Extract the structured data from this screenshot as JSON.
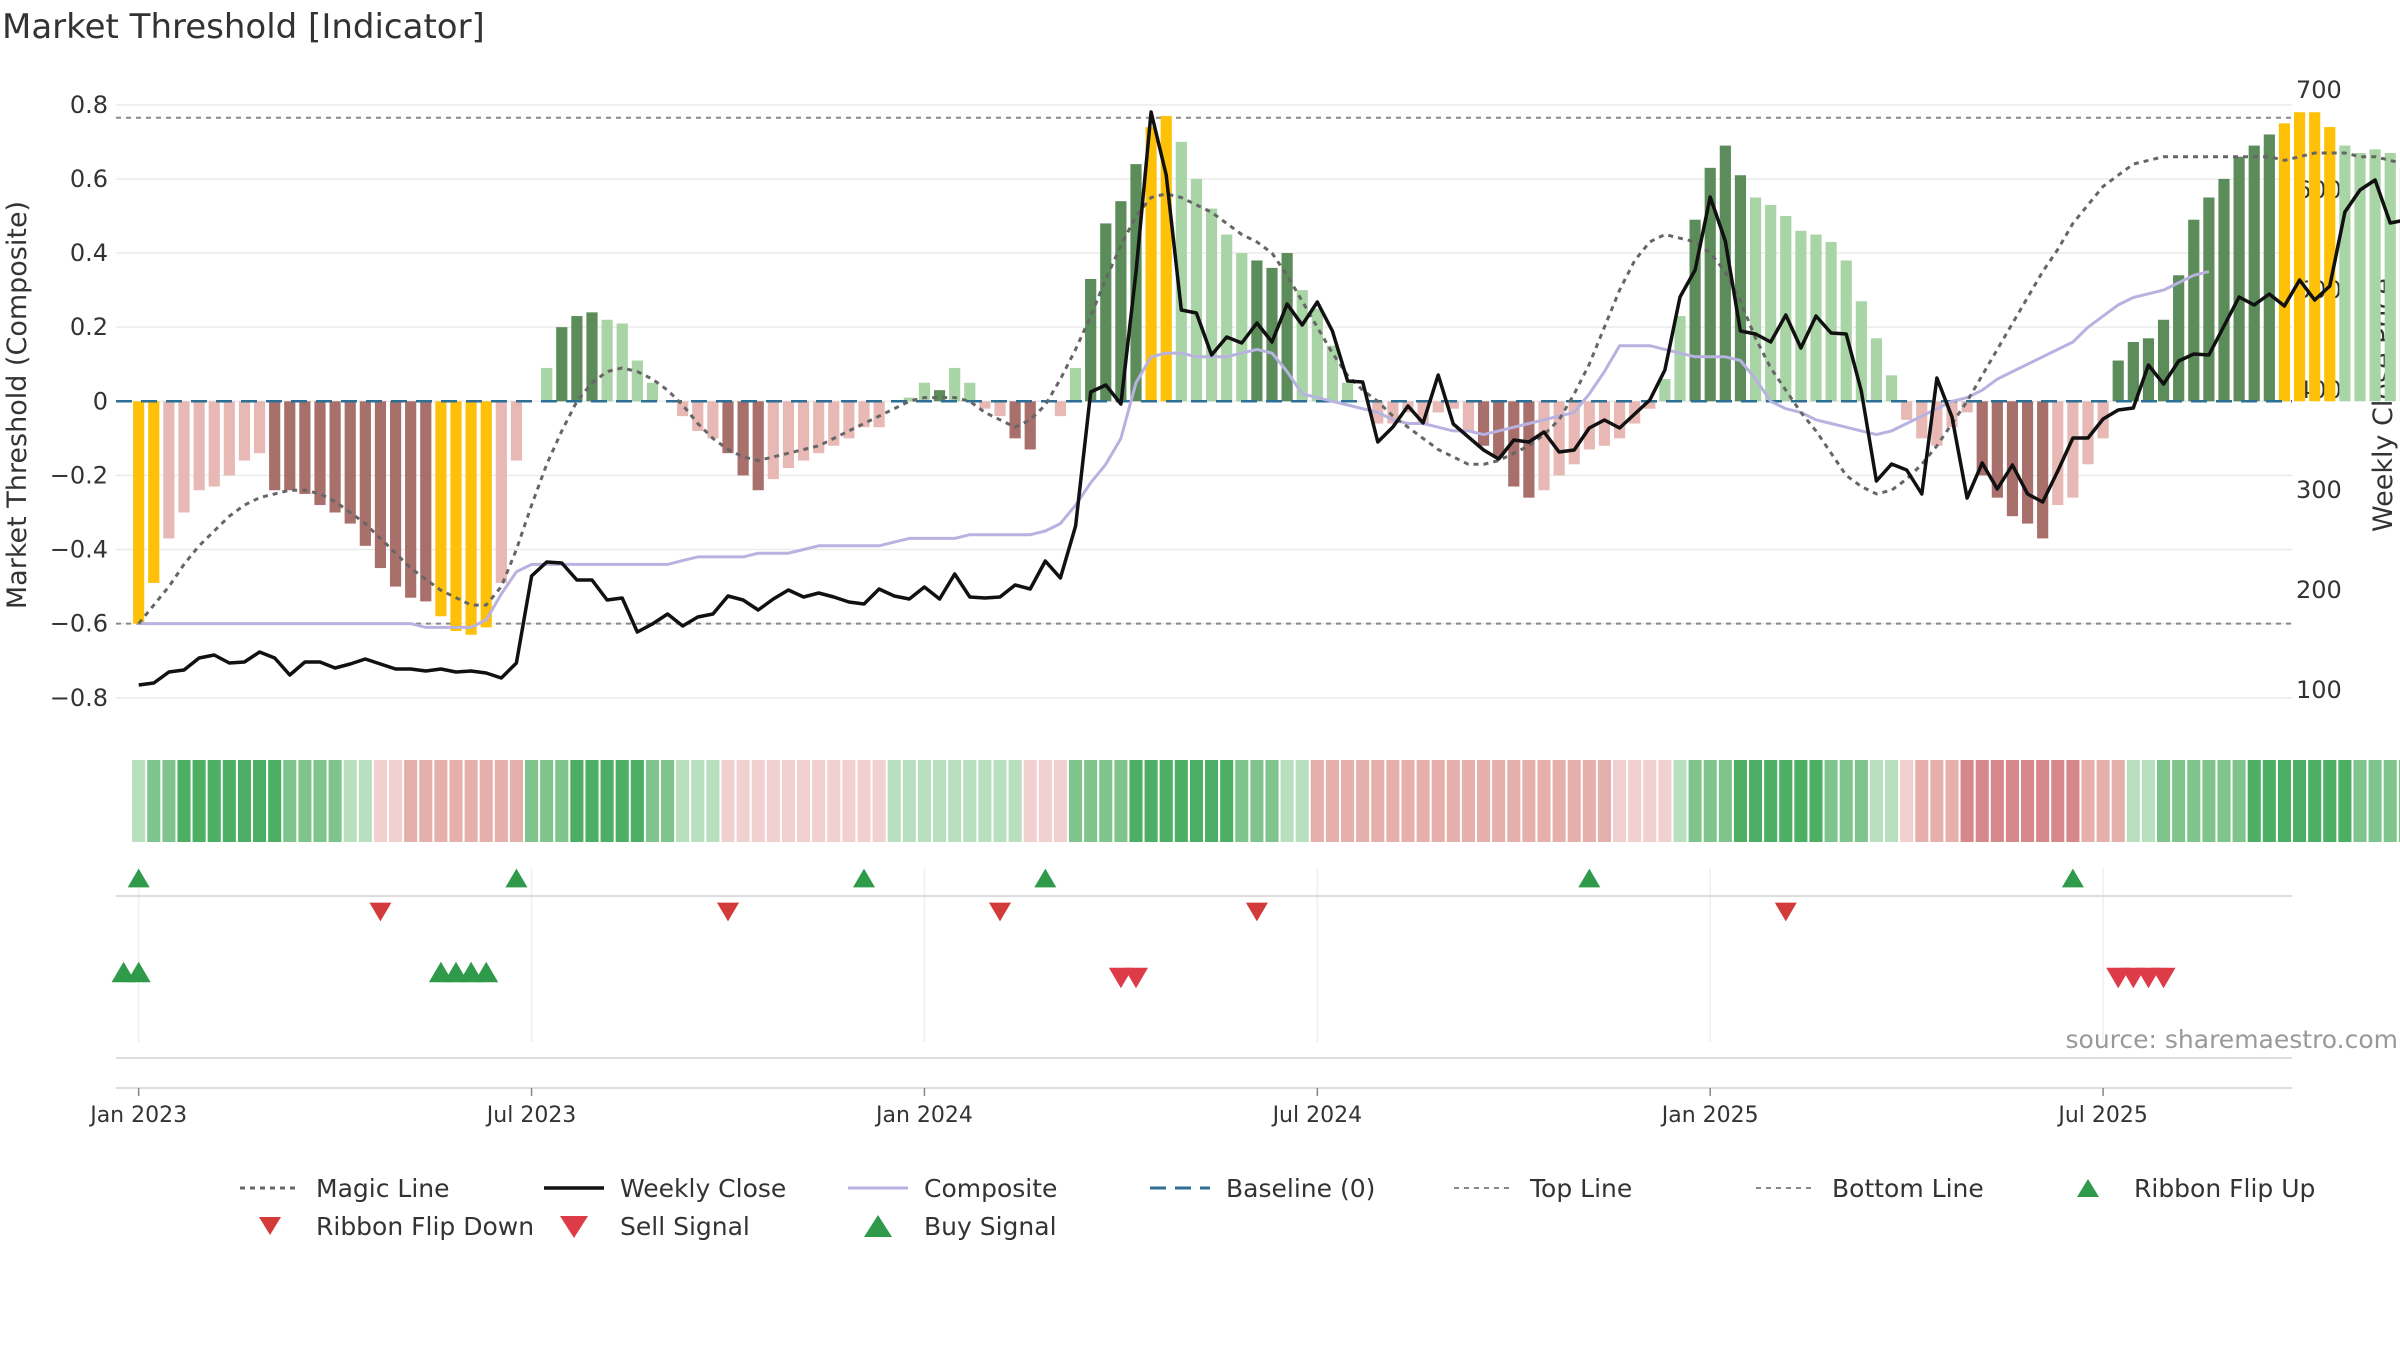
{
  "chart_data": [
    {
      "type": "bar",
      "title": "Market Threshold [Indicator]",
      "ylabel": "Market Threshold (Composite)",
      "y2label": "Weekly Close Price",
      "source": "source: sharemaestro.com",
      "ylim": [
        -0.86,
        0.84
      ],
      "y2lim": [
        70,
        700
      ],
      "yticks": [
        "−0.8",
        "−0.6",
        "−0.4",
        "−0.2",
        "0",
        "0.2",
        "0.4",
        "0.6",
        "0.8"
      ],
      "yticks_values": [
        -0.8,
        -0.6,
        -0.4,
        -0.2,
        0,
        0.2,
        0.4,
        0.6,
        0.8
      ],
      "y2ticks": [
        "100",
        "200",
        "300",
        "400",
        "500",
        "600",
        "700"
      ],
      "y2ticks_values": [
        100,
        200,
        300,
        400,
        500,
        600,
        700
      ],
      "xticks": [
        "Jan 2023",
        "Jul 2023",
        "Jan 2024",
        "Jul 2024",
        "Jan 2025",
        "Jul 2025"
      ],
      "xticks_weeks": [
        0,
        26,
        52,
        78,
        104,
        130
      ],
      "week_start": "2023-01-02",
      "top_line": 0.765,
      "bottom_line": -0.6,
      "x_range_weeks": [
        -1.5,
        142.5
      ],
      "composite": [
        -0.6,
        -0.49,
        -0.37,
        -0.3,
        -0.24,
        -0.23,
        -0.2,
        -0.16,
        -0.14,
        -0.24,
        -0.24,
        -0.25,
        -0.28,
        -0.3,
        -0.33,
        -0.39,
        -0.45,
        -0.5,
        -0.53,
        -0.54,
        -0.58,
        -0.62,
        -0.63,
        -0.61,
        -0.49,
        -0.16,
        0.0,
        0.09,
        0.2,
        0.23,
        0.24,
        0.22,
        0.21,
        0.11,
        0.05,
        0.0,
        -0.04,
        -0.08,
        -0.1,
        -0.14,
        -0.2,
        -0.24,
        -0.21,
        -0.18,
        -0.16,
        -0.14,
        -0.12,
        -0.1,
        -0.07,
        -0.07,
        0.0,
        0.01,
        0.05,
        0.03,
        0.09,
        0.05,
        -0.02,
        -0.04,
        -0.1,
        -0.13,
        0.0,
        -0.04,
        0.09,
        0.33,
        0.48,
        0.54,
        0.64,
        0.74,
        0.77,
        0.7,
        0.6,
        0.52,
        0.45,
        0.4,
        0.38,
        0.36,
        0.4,
        0.3,
        0.25,
        0.15,
        0.05,
        0.0,
        -0.06,
        -0.06,
        -0.03,
        -0.06,
        -0.03,
        -0.02,
        -0.08,
        -0.12,
        -0.15,
        -0.23,
        -0.26,
        -0.24,
        -0.2,
        -0.17,
        -0.13,
        -0.12,
        -0.1,
        -0.06,
        -0.02,
        0.06,
        0.23,
        0.49,
        0.63,
        0.69,
        0.61,
        0.55,
        0.53,
        0.5,
        0.46,
        0.45,
        0.43,
        0.38,
        0.27,
        0.17,
        0.07,
        -0.05,
        -0.1,
        -0.12,
        -0.07,
        -0.03,
        -0.2,
        -0.26,
        -0.31,
        -0.33,
        -0.37,
        -0.28,
        -0.26,
        -0.17,
        -0.1,
        0.11,
        0.16,
        0.17,
        0.22,
        0.34,
        0.49,
        0.55,
        0.6,
        0.66,
        0.69,
        0.72,
        0.75,
        0.78,
        0.78,
        0.74,
        0.69,
        0.67,
        0.68,
        0.67,
        0.63
      ],
      "bar_tones": [
        "highlight",
        "highlight",
        "lightred",
        "lightred",
        "lightred",
        "lightred",
        "lightred",
        "lightred",
        "lightred",
        "darkred",
        "darkred",
        "darkred",
        "darkred",
        "darkred",
        "darkred",
        "darkred",
        "darkred",
        "darkred",
        "darkred",
        "darkred",
        "highlight",
        "highlight",
        "highlight",
        "highlight",
        "lightred",
        "lightred",
        "lightgreen",
        "lightgreen",
        "darkgreen",
        "darkgreen",
        "darkgreen",
        "lightgreen",
        "lightgreen",
        "lightgreen",
        "lightgreen",
        "lightgreen",
        "lightred",
        "lightred",
        "lightred",
        "darkred",
        "darkred",
        "darkred",
        "lightred",
        "lightred",
        "lightred",
        "lightred",
        "lightred",
        "lightred",
        "lightred",
        "lightred",
        "lightgreen",
        "lightgreen",
        "lightgreen",
        "darkgreen",
        "lightgreen",
        "lightgreen",
        "lightred",
        "lightred",
        "darkred",
        "darkred",
        "lightred",
        "lightred",
        "lightgreen",
        "darkgreen",
        "darkgreen",
        "darkgreen",
        "darkgreen",
        "highlight",
        "highlight",
        "lightgreen",
        "lightgreen",
        "lightgreen",
        "lightgreen",
        "lightgreen",
        "darkgreen",
        "darkgreen",
        "darkgreen",
        "lightgreen",
        "lightgreen",
        "lightgreen",
        "lightgreen",
        "lightred",
        "lightred",
        "lightred",
        "lightred",
        "lightred",
        "lightred",
        "lightred",
        "lightred",
        "darkred",
        "darkred",
        "darkred",
        "darkred",
        "lightred",
        "lightred",
        "lightred",
        "lightred",
        "lightred",
        "lightred",
        "lightred",
        "lightred",
        "lightgreen",
        "lightgreen",
        "darkgreen",
        "darkgreen",
        "darkgreen",
        "darkgreen",
        "lightgreen",
        "lightgreen",
        "lightgreen",
        "lightgreen",
        "lightgreen",
        "lightgreen",
        "lightgreen",
        "lightgreen",
        "lightgreen",
        "lightgreen",
        "lightred",
        "lightred",
        "lightred",
        "lightred",
        "lightred",
        "darkred",
        "darkred",
        "darkred",
        "darkred",
        "darkred",
        "lightred",
        "lightred",
        "lightred",
        "lightred",
        "darkgreen",
        "darkgreen",
        "darkgreen",
        "darkgreen",
        "darkgreen",
        "darkgreen",
        "darkgreen",
        "darkgreen",
        "darkgreen",
        "darkgreen",
        "darkgreen",
        "highlight",
        "highlight",
        "highlight",
        "highlight",
        "lightgreen",
        "lightgreen",
        "lightgreen",
        "lightgreen",
        "lightgreen"
      ],
      "weekly_close": [
        105,
        107,
        118,
        120,
        132,
        135,
        127,
        128,
        138,
        132,
        115,
        128,
        128,
        122,
        126,
        131,
        126,
        121,
        121,
        119,
        121,
        118,
        119,
        117,
        112,
        127,
        214,
        228,
        227,
        210,
        210,
        190,
        192,
        158,
        166,
        176,
        164,
        173,
        176,
        194,
        190,
        180,
        191,
        200,
        193,
        197,
        193,
        188,
        186,
        201,
        194,
        191,
        203,
        191,
        216,
        193,
        192,
        193,
        205,
        201,
        229,
        212,
        264,
        398,
        405,
        386,
        518,
        678,
        615,
        480,
        477,
        435,
        453,
        447,
        467,
        448,
        486,
        465,
        488,
        459,
        409,
        408,
        348,
        363,
        384,
        367,
        415,
        366,
        353,
        340,
        331,
        350,
        348,
        358,
        338,
        340,
        362,
        370,
        362,
        376,
        390,
        420,
        493,
        520,
        593,
        549,
        459,
        456,
        448,
        475,
        442,
        474,
        457,
        456,
        399,
        309,
        326,
        320,
        296,
        412,
        373,
        292,
        327,
        301,
        325,
        296,
        288,
        319,
        352,
        352,
        371,
        380,
        382,
        425,
        406,
        429,
        436,
        435,
        464,
        493,
        485,
        496,
        484,
        510,
        490,
        504,
        578,
        600,
        610,
        567,
        570,
        555,
        620,
        609,
        616
      ],
      "magic_line": [
        -0.6,
        -0.55,
        -0.5,
        -0.44,
        -0.39,
        -0.35,
        -0.31,
        -0.28,
        -0.26,
        -0.25,
        -0.24,
        -0.24,
        -0.25,
        -0.27,
        -0.3,
        -0.33,
        -0.37,
        -0.41,
        -0.45,
        -0.48,
        -0.51,
        -0.53,
        -0.55,
        -0.55,
        -0.5,
        -0.4,
        -0.28,
        -0.17,
        -0.08,
        0.0,
        0.05,
        0.08,
        0.09,
        0.08,
        0.06,
        0.03,
        -0.01,
        -0.06,
        -0.1,
        -0.13,
        -0.15,
        -0.16,
        -0.15,
        -0.14,
        -0.13,
        -0.12,
        -0.1,
        -0.08,
        -0.06,
        -0.04,
        -0.02,
        0.0,
        0.01,
        0.01,
        0.01,
        0.0,
        -0.03,
        -0.05,
        -0.07,
        -0.05,
        -0.01,
        0.06,
        0.14,
        0.23,
        0.33,
        0.42,
        0.5,
        0.55,
        0.56,
        0.55,
        0.53,
        0.51,
        0.48,
        0.45,
        0.43,
        0.4,
        0.34,
        0.27,
        0.2,
        0.13,
        0.07,
        0.03,
        0.0,
        -0.04,
        -0.07,
        -0.1,
        -0.13,
        -0.15,
        -0.17,
        -0.17,
        -0.16,
        -0.14,
        -0.12,
        -0.09,
        -0.05,
        0.02,
        0.1,
        0.2,
        0.3,
        0.38,
        0.43,
        0.45,
        0.44,
        0.43,
        0.4,
        0.35,
        0.27,
        0.17,
        0.09,
        0.03,
        -0.03,
        -0.08,
        -0.14,
        -0.2,
        -0.23,
        -0.25,
        -0.24,
        -0.21,
        -0.17,
        -0.12,
        -0.06,
        0.0,
        0.07,
        0.14,
        0.21,
        0.28,
        0.35,
        0.41,
        0.48,
        0.53,
        0.58,
        0.61,
        0.64,
        0.65,
        0.66,
        0.66,
        0.66,
        0.66,
        0.66,
        0.66,
        0.66,
        0.66,
        0.65,
        0.66,
        0.67,
        0.67,
        0.67,
        0.66,
        0.66,
        0.65,
        0.64,
        0.63,
        0.62,
        0.62,
        0.62,
        0.62,
        0.61
      ],
      "composite_line": [
        -0.6,
        -0.6,
        -0.6,
        -0.6,
        -0.6,
        -0.6,
        -0.6,
        -0.6,
        -0.6,
        -0.6,
        -0.6,
        -0.6,
        -0.6,
        -0.6,
        -0.6,
        -0.6,
        -0.6,
        -0.6,
        -0.6,
        -0.61,
        -0.61,
        -0.61,
        -0.61,
        -0.59,
        -0.52,
        -0.46,
        -0.44,
        -0.44,
        -0.44,
        -0.44,
        -0.44,
        -0.44,
        -0.44,
        -0.44,
        -0.44,
        -0.44,
        -0.43,
        -0.42,
        -0.42,
        -0.42,
        -0.42,
        -0.41,
        -0.41,
        -0.41,
        -0.4,
        -0.39,
        -0.39,
        -0.39,
        -0.39,
        -0.39,
        -0.38,
        -0.37,
        -0.37,
        -0.37,
        -0.37,
        -0.36,
        -0.36,
        -0.36,
        -0.36,
        -0.36,
        -0.35,
        -0.33,
        -0.28,
        -0.22,
        -0.17,
        -0.1,
        0.05,
        0.12,
        0.13,
        0.13,
        0.12,
        0.12,
        0.12,
        0.13,
        0.14,
        0.13,
        0.08,
        0.02,
        0.01,
        0.0,
        -0.01,
        -0.02,
        -0.03,
        -0.05,
        -0.06,
        -0.06,
        -0.07,
        -0.08,
        -0.08,
        -0.09,
        -0.08,
        -0.07,
        -0.06,
        -0.05,
        -0.04,
        -0.03,
        0.02,
        0.08,
        0.15,
        0.15,
        0.15,
        0.14,
        0.13,
        0.12,
        0.12,
        0.12,
        0.11,
        0.06,
        0.0,
        -0.02,
        -0.03,
        -0.05,
        -0.06,
        -0.07,
        -0.08,
        -0.09,
        -0.08,
        -0.06,
        -0.04,
        -0.02,
        0.0,
        0.01,
        0.03,
        0.06,
        0.08,
        0.1,
        0.12,
        0.14,
        0.16,
        0.2,
        0.23,
        0.26,
        0.28,
        0.29,
        0.3,
        0.32,
        0.34,
        0.35
      ],
      "ribbon_values": [
        1,
        2,
        2,
        3,
        3,
        3,
        3,
        3,
        3,
        3,
        2,
        2,
        2,
        2,
        1,
        1,
        -1,
        -1,
        -2,
        -2,
        -2,
        -2,
        -2,
        -2,
        -2,
        -2,
        2,
        2,
        2,
        3,
        3,
        3,
        3,
        3,
        2,
        2,
        1,
        1,
        1,
        -1,
        -1,
        -1,
        -1,
        -1,
        -1,
        -1,
        -1,
        -1,
        -1,
        -1,
        1,
        1,
        1,
        1,
        1,
        1,
        1,
        1,
        1,
        -1,
        -1,
        -1,
        2,
        2,
        2,
        2,
        3,
        3,
        3,
        3,
        3,
        3,
        3,
        2,
        2,
        2,
        1,
        1,
        -2,
        -2,
        -2,
        -2,
        -2,
        -2,
        -2,
        -2,
        -2,
        -2,
        -2,
        -2,
        -2,
        -2,
        -2,
        -2,
        -2,
        -2,
        -2,
        -2,
        -1,
        -1,
        -1,
        -1,
        1,
        2,
        2,
        2,
        3,
        3,
        3,
        3,
        3,
        3,
        2,
        2,
        2,
        1,
        1,
        -1,
        -2,
        -2,
        -2,
        -3,
        -3,
        -3,
        -3,
        -3,
        -3,
        -3,
        -3,
        -2,
        -2,
        -2,
        1,
        1,
        2,
        2,
        2,
        2,
        2,
        2,
        3,
        3,
        3,
        3,
        3,
        3,
        3,
        2,
        2,
        2,
        2,
        1,
        1
      ],
      "ribbon_flip_up_weeks": [
        0,
        25,
        48,
        60,
        96,
        128
      ],
      "ribbon_flip_down_weeks": [
        16,
        39,
        57,
        74,
        109
      ],
      "buy_signal_weeks": [
        -1,
        0,
        20,
        21,
        22,
        23
      ],
      "sell_signal_weeks": [
        65,
        66,
        131,
        132,
        133,
        134
      ],
      "legend": [
        "Magic Line",
        "Weekly Close",
        "Composite",
        "Baseline (0)",
        "Top Line",
        "Bottom Line",
        "Ribbon Flip Up",
        "Ribbon Flip Down",
        "Sell Signal",
        "Buy Signal"
      ],
      "colors": {
        "highlight": "#FFC107",
        "darkgreen": "#5B8C5A",
        "lightgreen": "#A9D5A6",
        "darkred": "#A86F6B",
        "lightred": "#E8B9B4",
        "weekly_close": "#111111",
        "composite": "#B8B2E0",
        "magic_line": "#666666",
        "baseline": "#2E6F95",
        "threshold": "#888888",
        "flip_up": "#2E9A4A",
        "flip_down": "#D33A3A",
        "buy": "#2E9A4A",
        "sell": "#DD3B48",
        "ribbon_pos": "#4CAF63",
        "ribbon_neg": "#D07C78"
      }
    }
  ]
}
